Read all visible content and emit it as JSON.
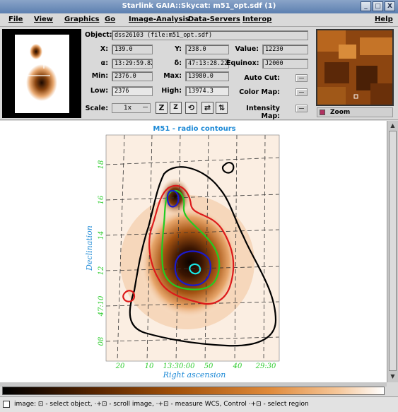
{
  "window": {
    "title": "Starlink GAIA::Skycat: m51_opt.sdf (1)",
    "buttons": [
      "_",
      "□",
      "X"
    ]
  },
  "menu": [
    "File",
    "View",
    "Graphics",
    "Go",
    "Image-Analysis",
    "Data-Servers",
    "Interop",
    "Help"
  ],
  "info": {
    "object_label": "Object:",
    "object_value": "dss26103 (file:m51_opt.sdf)",
    "x_label": "X:",
    "x_value": "139.0",
    "y_label": "Y:",
    "y_value": "238.0",
    "value_label": "Value:",
    "value_value": "12230",
    "alpha_label": "α:",
    "alpha_value": "13:29:59.824",
    "delta_label": "δ:",
    "delta_value": "47:13:28.22",
    "equinox_label": "Equinox:",
    "equinox_value": "J2000",
    "min_label": "Min:",
    "min_value": "2376.0",
    "max_label": "Max:",
    "max_value": "13980.0",
    "low_label": "Low:",
    "low_value": "2376",
    "high_label": "High:",
    "high_value": "13974.3",
    "autocut_label": "Auto Cut:",
    "colormap_label": "Color Map:",
    "intensity_label": "Intensity Map:",
    "scale_label": "Scale:",
    "scale_value": "1x",
    "zoom_label": "Zoom"
  },
  "plot": {
    "title": "M51 - radio contours",
    "xlabel": "Right ascension",
    "ylabel": "Declination",
    "xticks": [
      "20",
      "10",
      "13:30:00",
      "50",
      "40",
      "29:30"
    ],
    "yticks": [
      "18",
      "16",
      "14",
      "12",
      "47:10",
      "08"
    ],
    "colors": {
      "axis_label": "#1e8ad6",
      "ticks": "#2ecc2e",
      "contour_outer": "#000000",
      "contour_red": "#dd1a1a",
      "contour_green": "#22cc22",
      "contour_blue": "#1a1acc",
      "contour_cyan": "#19e6e6"
    }
  },
  "status": {
    "text": "image: ⊡ - select object, ·+⊡ - scroll image, ·+⊡ - measure WCS, Control ·+⊡ - select region"
  }
}
